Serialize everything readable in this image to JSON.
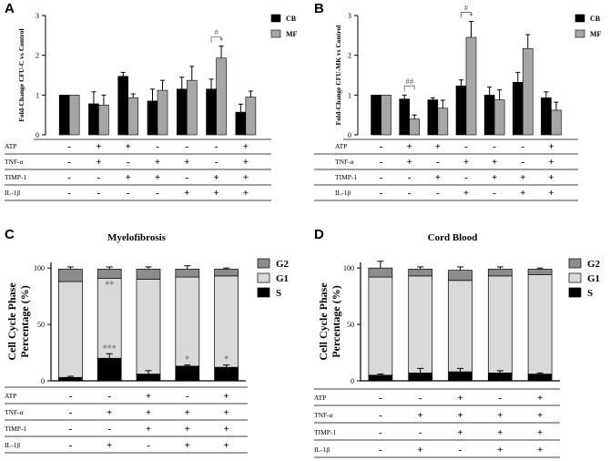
{
  "colors": {
    "cb": "#000000",
    "mf": "#a6a6a6",
    "g2": "#8c8c8c",
    "g1": "#d9d9d9",
    "s": "#000000",
    "sig": "#808080"
  },
  "chart_data": [
    {
      "panel": "A",
      "type": "bar",
      "title": "",
      "ylabel": "Fold-Change CFU-C vs Control",
      "ylim": [
        0,
        3
      ],
      "yticks": [
        "0",
        "1",
        "2",
        "3"
      ],
      "legend": [
        "CB",
        "MF"
      ],
      "series": [
        {
          "name": "CB",
          "values": [
            1.0,
            0.78,
            1.47,
            0.85,
            1.15,
            1.15,
            0.57
          ],
          "errors": [
            0,
            0.3,
            0.1,
            0.3,
            0.3,
            0.25,
            0.2
          ]
        },
        {
          "name": "MF",
          "values": [
            1.0,
            0.75,
            0.93,
            1.12,
            1.37,
            1.93,
            0.95
          ],
          "errors": [
            0,
            0.25,
            0.1,
            0.25,
            0.35,
            0.3,
            0.15
          ]
        }
      ],
      "annotations": [
        {
          "text": "#",
          "group": 5
        },
        {
          "text": "*",
          "group": 5,
          "series": "MF"
        }
      ],
      "conditions": {
        "labels": [
          "ATP",
          "TNF-α",
          "TIMP-1",
          "IL-1β"
        ],
        "rows": [
          [
            "-",
            "+",
            "+",
            "-",
            "-",
            "-",
            "+"
          ],
          [
            "-",
            "+",
            "-",
            "+",
            "+",
            "-",
            "+"
          ],
          [
            "-",
            "-",
            "+",
            "+",
            "-",
            "+",
            "+"
          ],
          [
            "-",
            "-",
            "-",
            "-",
            "+",
            "+",
            "+"
          ]
        ]
      }
    },
    {
      "panel": "B",
      "type": "bar",
      "title": "",
      "ylabel": "Fold-Change CFU-MK vs Control",
      "ylim": [
        0,
        3
      ],
      "yticks": [
        "0",
        "1",
        "2",
        "3"
      ],
      "legend": [
        "CB",
        "MF"
      ],
      "series": [
        {
          "name": "CB",
          "values": [
            1.0,
            0.9,
            0.88,
            1.23,
            1.0,
            1.32,
            0.93
          ],
          "errors": [
            0,
            0.1,
            0.05,
            0.15,
            0.2,
            0.25,
            0.15
          ]
        },
        {
          "name": "MF",
          "values": [
            1.0,
            0.4,
            0.67,
            2.45,
            0.88,
            2.17,
            0.62
          ],
          "errors": [
            0,
            0.1,
            0.2,
            0.4,
            0.25,
            0.35,
            0.2
          ]
        }
      ],
      "annotations": [
        {
          "text": "##",
          "group": 1
        },
        {
          "text": "#",
          "group": 3
        },
        {
          "text": "*",
          "group": 3,
          "series": "MF"
        }
      ],
      "conditions": {
        "labels": [
          "ATP",
          "TNF-α",
          "TIMP-1",
          "IL-1β"
        ],
        "rows": [
          [
            "-",
            "+",
            "+",
            "-",
            "-",
            "-",
            "+"
          ],
          [
            "-",
            "+",
            "-",
            "+",
            "+",
            "-",
            "+"
          ],
          [
            "-",
            "-",
            "+",
            "-",
            "+",
            "+",
            "+"
          ],
          [
            "-",
            "-",
            "-",
            "+",
            "-",
            "+",
            "+"
          ]
        ]
      }
    },
    {
      "panel": "C",
      "type": "bar",
      "stacked": true,
      "title": "Myelofibrosis",
      "ylabel": "Cell Cycle Phase Percentage (%)",
      "ylim": [
        0,
        100
      ],
      "yticks": [
        "0",
        "50",
        "100"
      ],
      "legend": [
        "G2",
        "G1",
        "S"
      ],
      "series": [
        {
          "name": "S",
          "values": [
            3,
            20,
            6,
            13,
            12
          ],
          "errors": [
            1,
            4,
            3,
            1,
            2
          ]
        },
        {
          "name": "G1",
          "values": [
            85,
            71,
            84,
            79,
            81
          ],
          "errors": [
            0,
            0,
            0,
            0,
            0
          ]
        },
        {
          "name": "G2",
          "values": [
            11,
            8,
            9,
            7,
            6
          ],
          "errors": [
            2,
            2,
            2,
            3,
            1
          ]
        }
      ],
      "annotations": [
        {
          "text": "**",
          "group": 1,
          "series": "G1"
        },
        {
          "text": "***",
          "group": 1,
          "series": "S"
        },
        {
          "text": "*",
          "group": 3,
          "series": "S"
        },
        {
          "text": "*",
          "group": 4,
          "series": "S"
        }
      ],
      "conditions": {
        "labels": [
          "ATP",
          "TNF-α",
          "TIMP-1",
          "IL-1β"
        ],
        "rows": [
          [
            "-",
            "-",
            "+",
            "-",
            "+"
          ],
          [
            "-",
            "+",
            "+",
            "+",
            "+"
          ],
          [
            "-",
            "-",
            "+",
            "+",
            "+"
          ],
          [
            "-",
            "+",
            "-",
            "+",
            "+"
          ]
        ]
      }
    },
    {
      "panel": "D",
      "type": "bar",
      "stacked": true,
      "title": "Cord Blood",
      "ylabel": "Cell Cycle Phase Percentage (%)",
      "ylim": [
        0,
        100
      ],
      "yticks": [
        "0",
        "50",
        "100"
      ],
      "legend": [
        "G2",
        "G1",
        "S"
      ],
      "series": [
        {
          "name": "S",
          "values": [
            5,
            7,
            8,
            7,
            6
          ],
          "errors": [
            1,
            4,
            3,
            2,
            1
          ]
        },
        {
          "name": "G1",
          "values": [
            87,
            86,
            81,
            86,
            88
          ],
          "errors": [
            0,
            0,
            0,
            0,
            0
          ]
        },
        {
          "name": "G2",
          "values": [
            8,
            6,
            9,
            6,
            5
          ],
          "errors": [
            6,
            2,
            3,
            2,
            1
          ]
        }
      ],
      "annotations": [],
      "conditions": {
        "labels": [
          "ATP",
          "TNF-α",
          "TIMP-1",
          "IL-1β"
        ],
        "rows": [
          [
            "-",
            "-",
            "+",
            "-",
            "+"
          ],
          [
            "-",
            "+",
            "+",
            "+",
            "+"
          ],
          [
            "-",
            "-",
            "+",
            "+",
            "+"
          ],
          [
            "-",
            "+",
            "-",
            "+",
            "+"
          ]
        ]
      }
    }
  ]
}
